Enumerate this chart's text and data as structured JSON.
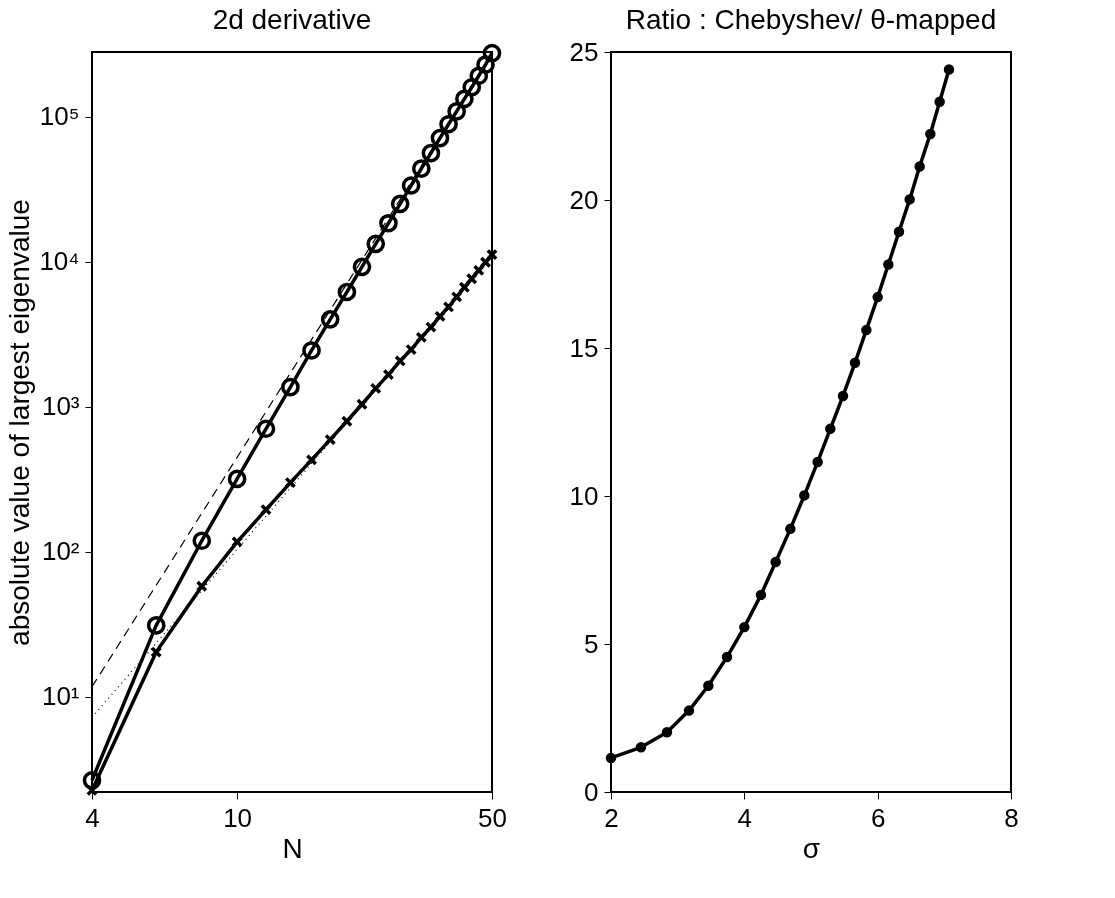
{
  "chart_data": [
    {
      "type": "line",
      "title": "2d   derivative",
      "xlabel": "N",
      "ylabel": "absolute value of largest eigenvalue",
      "log": "xy",
      "grid": false,
      "xlim": [
        4,
        50
      ],
      "xticks": [
        4,
        10,
        50
      ],
      "ylim": [
        2.2,
        280000
      ],
      "yticks": [
        {
          "value": 10,
          "label": "10¹"
        },
        {
          "value": 100,
          "label": "10²"
        },
        {
          "value": 1000,
          "label": "10³"
        },
        {
          "value": 10000,
          "label": "10⁴"
        },
        {
          "value": 100000,
          "label": "10⁵"
        }
      ],
      "series": [
        {
          "color": "#000000",
          "marker": "circle",
          "line_style": "solid",
          "x": [
            4,
            6,
            8,
            10,
            12,
            14,
            16,
            18,
            20,
            22,
            24,
            26,
            28,
            30,
            32,
            34,
            36,
            38,
            40,
            42,
            44,
            46,
            48,
            50
          ],
          "values": [
            2.65,
            31,
            119,
            318,
            705,
            1365,
            2445,
            4010,
            6190,
            9230,
            13300,
            18450,
            25100,
            33600,
            43900,
            56200,
            71300,
            88900,
            109000,
            133000,
            160000,
            192000,
            229000,
            275000
          ]
        },
        {
          "color": "#000000",
          "marker": "cross",
          "line_style": "solid",
          "x": [
            4,
            6,
            8,
            10,
            12,
            14,
            16,
            18,
            20,
            22,
            24,
            26,
            28,
            30,
            32,
            34,
            36,
            38,
            40,
            42,
            44,
            46,
            48,
            50
          ],
          "values": [
            2.26,
            20.3,
            57.8,
            117,
            195,
            300,
            430,
            593,
            794,
            1040,
            1340,
            1667,
            2070,
            2480,
            3010,
            3540,
            4200,
            4880,
            5730,
            6670,
            7640,
            8730,
            9930,
            11200
          ]
        },
        {
          "color": "#000000",
          "marker": "none",
          "line_style": "dashed",
          "x": [
            4,
            50
          ],
          "values": [
            11.7,
            270000
          ]
        },
        {
          "color": "#000000",
          "marker": "none",
          "line_style": "dotted",
          "x": [
            4,
            50
          ],
          "values": [
            7.2,
            11200
          ]
        }
      ]
    },
    {
      "type": "line",
      "title": "Ratio : Chebyshev/ θ-mapped",
      "xlabel": "σ",
      "grid": false,
      "xlim": [
        2,
        8
      ],
      "xticks": [
        2,
        4,
        6,
        8
      ],
      "ylim": [
        0,
        25
      ],
      "yticks": [
        0,
        5,
        10,
        15,
        20,
        25
      ],
      "series": [
        {
          "color": "#000000",
          "marker": "circle",
          "line_style": "solid",
          "x": [
            2.0,
            2.45,
            2.84,
            3.17,
            3.46,
            3.74,
            4.0,
            4.25,
            4.47,
            4.69,
            4.9,
            5.1,
            5.29,
            5.48,
            5.66,
            5.83,
            6.0,
            6.16,
            6.32,
            6.48,
            6.63,
            6.79,
            6.93,
            7.07
          ],
          "values": [
            1.15,
            1.51,
            2.02,
            2.75,
            3.59,
            4.56,
            5.57,
            6.66,
            7.77,
            8.89,
            10.02,
            11.15,
            12.27,
            13.38,
            14.5,
            15.61,
            16.72,
            17.82,
            18.93,
            20.02,
            21.13,
            22.23,
            23.32,
            24.41
          ]
        }
      ]
    }
  ]
}
